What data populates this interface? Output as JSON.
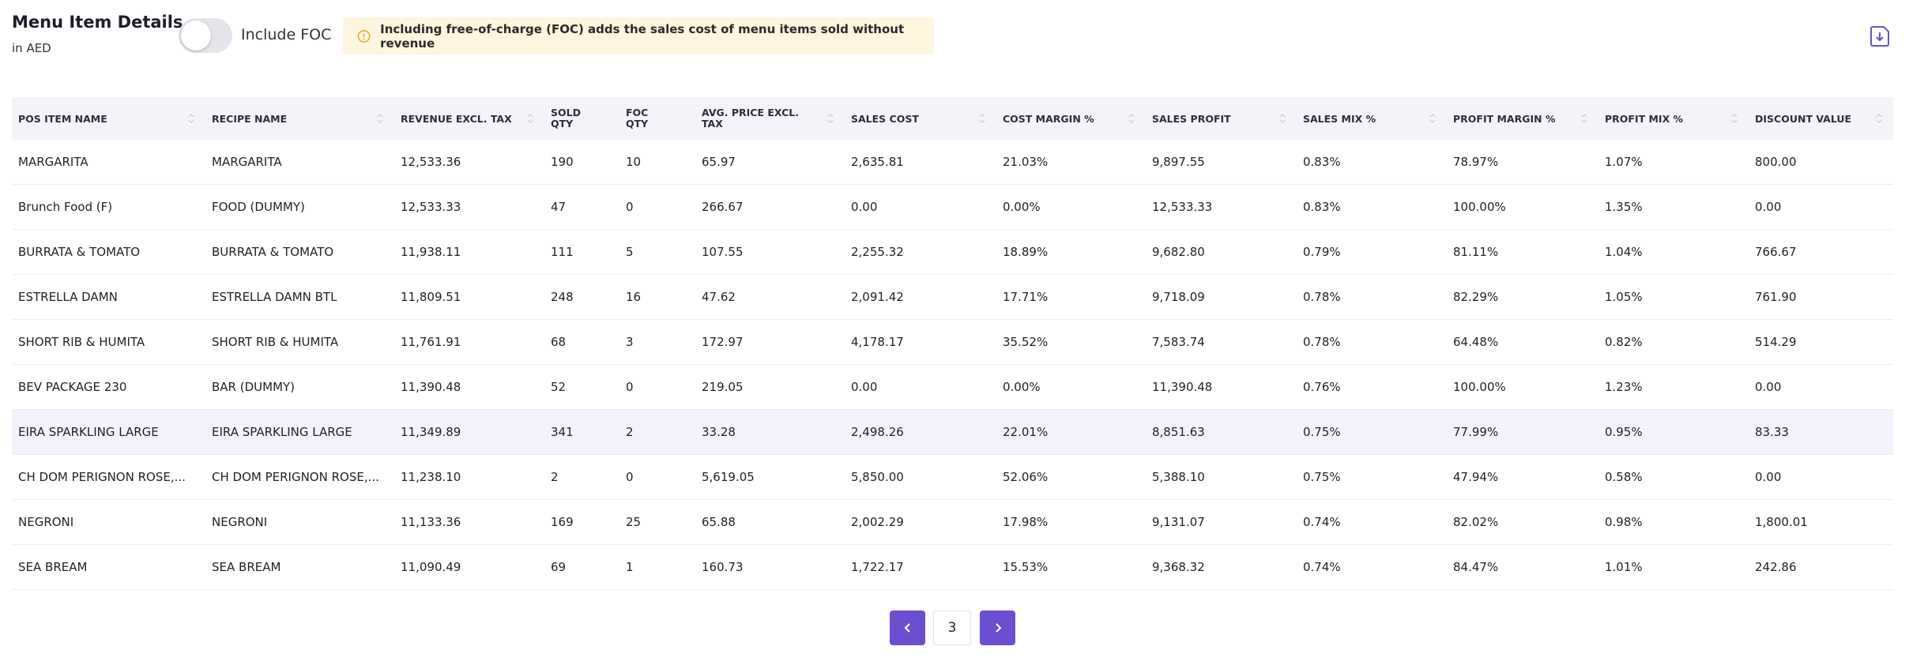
{
  "header": {
    "title": "Menu Item Details",
    "subtitle": "in AED",
    "toggle_label": "Include FOC",
    "notice": "Including free-of-charge (FOC) adds the sales cost of menu items sold without revenue"
  },
  "table": {
    "columns": [
      "POS ITEM NAME",
      "RECIPE NAME",
      "REVENUE EXCL. TAX",
      "SOLD QTY",
      "FOC QTY",
      "AVG. PRICE EXCL. TAX",
      "SALES COST",
      "COST MARGIN %",
      "SALES PROFIT",
      "SALES MIX %",
      "PROFIT MARGIN %",
      "PROFIT MIX %",
      "DISCOUNT VALUE"
    ],
    "rows": [
      [
        "MARGARITA",
        "MARGARITA",
        "12,533.36",
        "190",
        "10",
        "65.97",
        "2,635.81",
        "21.03%",
        "9,897.55",
        "0.83%",
        "78.97%",
        "1.07%",
        "800.00"
      ],
      [
        "Brunch Food (F)",
        "FOOD (DUMMY)",
        "12,533.33",
        "47",
        "0",
        "266.67",
        "0.00",
        "0.00%",
        "12,533.33",
        "0.83%",
        "100.00%",
        "1.35%",
        "0.00"
      ],
      [
        "BURRATA & TOMATO",
        "BURRATA & TOMATO",
        "11,938.11",
        "111",
        "5",
        "107.55",
        "2,255.32",
        "18.89%",
        "9,682.80",
        "0.79%",
        "81.11%",
        "1.04%",
        "766.67"
      ],
      [
        "ESTRELLA DAMN",
        "ESTRELLA DAMN BTL",
        "11,809.51",
        "248",
        "16",
        "47.62",
        "2,091.42",
        "17.71%",
        "9,718.09",
        "0.78%",
        "82.29%",
        "1.05%",
        "761.90"
      ],
      [
        "SHORT RIB & HUMITA",
        "SHORT RIB & HUMITA",
        "11,761.91",
        "68",
        "3",
        "172.97",
        "4,178.17",
        "35.52%",
        "7,583.74",
        "0.78%",
        "64.48%",
        "0.82%",
        "514.29"
      ],
      [
        "BEV PACKAGE 230",
        "BAR (DUMMY)",
        "11,390.48",
        "52",
        "0",
        "219.05",
        "0.00",
        "0.00%",
        "11,390.48",
        "0.76%",
        "100.00%",
        "1.23%",
        "0.00"
      ],
      [
        "EIRA SPARKLING LARGE",
        "EIRA SPARKLING LARGE",
        "11,349.89",
        "341",
        "2",
        "33.28",
        "2,498.26",
        "22.01%",
        "8,851.63",
        "0.75%",
        "77.99%",
        "0.95%",
        "83.33"
      ],
      [
        "CH DOM PERIGNON ROSE,...",
        "CH DOM PERIGNON ROSE,...",
        "11,238.10",
        "2",
        "0",
        "5,619.05",
        "5,850.00",
        "52.06%",
        "5,388.10",
        "0.75%",
        "47.94%",
        "0.58%",
        "0.00"
      ],
      [
        "NEGRONI",
        "NEGRONI",
        "11,133.36",
        "169",
        "25",
        "65.88",
        "2,002.29",
        "17.98%",
        "9,131.07",
        "0.74%",
        "82.02%",
        "0.98%",
        "1,800.01"
      ],
      [
        "SEA BREAM",
        "SEA BREAM",
        "11,090.49",
        "69",
        "1",
        "160.73",
        "1,722.17",
        "15.53%",
        "9,368.32",
        "0.74%",
        "84.47%",
        "1.01%",
        "242.86"
      ]
    ]
  },
  "pagination": {
    "page": "3"
  }
}
